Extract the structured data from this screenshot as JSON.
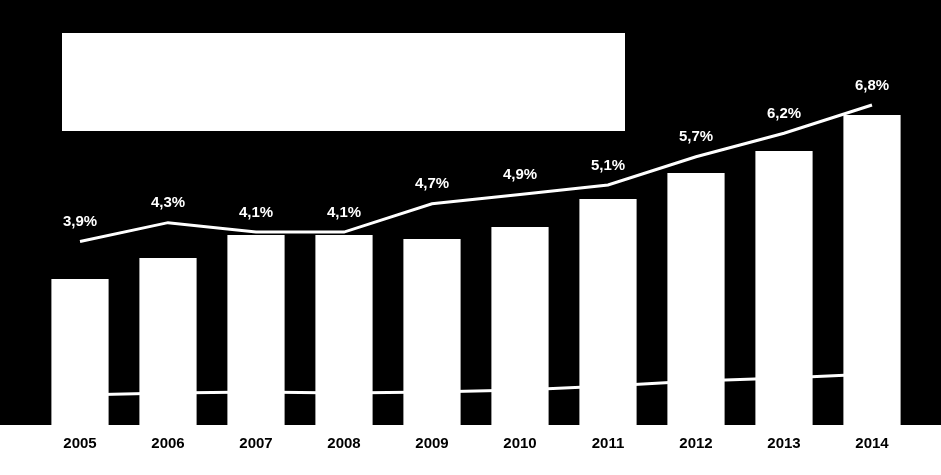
{
  "chart_data": {
    "type": "bar",
    "categories": [
      "2005",
      "2006",
      "2007",
      "2008",
      "2009",
      "2010",
      "2011",
      "2012",
      "2013",
      "2014"
    ],
    "series": [
      {
        "type": "bar",
        "color": "#ffffff",
        "values": [
          146,
          167,
          190,
          190,
          186,
          198,
          226,
          252,
          274,
          310
        ]
      },
      {
        "type": "line",
        "axis": "y2",
        "color": "#ffffff",
        "data_labels": true,
        "values": [
          3.9,
          4.3,
          4.1,
          4.1,
          4.7,
          4.9,
          5.1,
          5.7,
          6.2,
          6.8
        ],
        "value_labels": [
          "3,9%",
          "4,3%",
          "4,1%",
          "4,1%",
          "4,7%",
          "4,9%",
          "5,1%",
          "5,7%",
          "6,2%",
          "6,8%"
        ]
      },
      {
        "type": "line",
        "color": "#ffffff",
        "values": [
          30,
          32,
          33,
          32,
          33,
          35,
          39,
          44,
          47,
          51
        ]
      }
    ],
    "ylim": [
      0,
      400
    ],
    "y2lim": [
      0,
      8.5
    ],
    "tick_labels": "x",
    "grid": false
  }
}
